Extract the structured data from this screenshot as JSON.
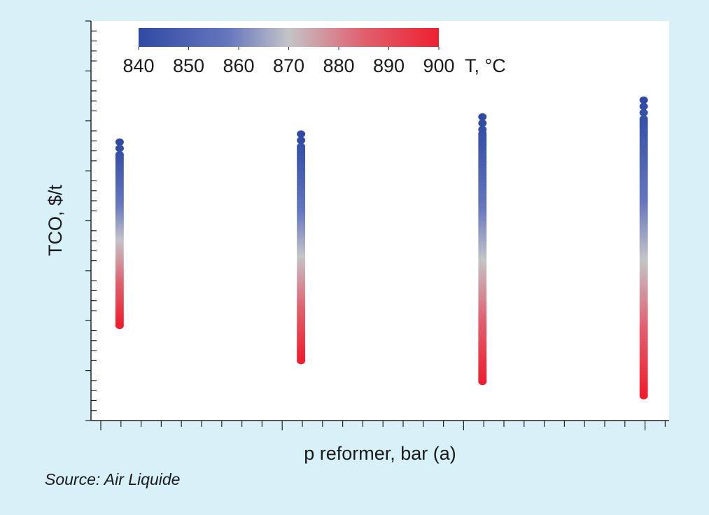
{
  "chart_data": {
    "type": "scatter",
    "xlabel": "p reformer, bar (a)",
    "ylabel": "TCO, $/t",
    "grid": false,
    "colorbar": {
      "label": "T, °C",
      "ticks": [
        "840",
        "850",
        "860",
        "870",
        "880",
        "890",
        "900"
      ],
      "min": 840,
      "max": 900,
      "colors": [
        "#2f4aa3",
        "#5468b8",
        "#8e9dd0",
        "#c4c4c8",
        "#e07a8a",
        "#ea3a4a",
        "#ee2030"
      ],
      "placement": "top-left"
    },
    "x_tick_count": 28,
    "y_tick_count": 40,
    "series": [
      {
        "x": 1,
        "y_top": 0.697,
        "y_bottom": 0.238
      },
      {
        "x": 10,
        "y_top": 0.717,
        "y_bottom": 0.15
      },
      {
        "x": 19,
        "y_top": 0.76,
        "y_bottom": 0.098
      },
      {
        "x": 27,
        "y_top": 0.802,
        "y_bottom": 0.062
      }
    ]
  },
  "source": "Source: Air Liquide"
}
